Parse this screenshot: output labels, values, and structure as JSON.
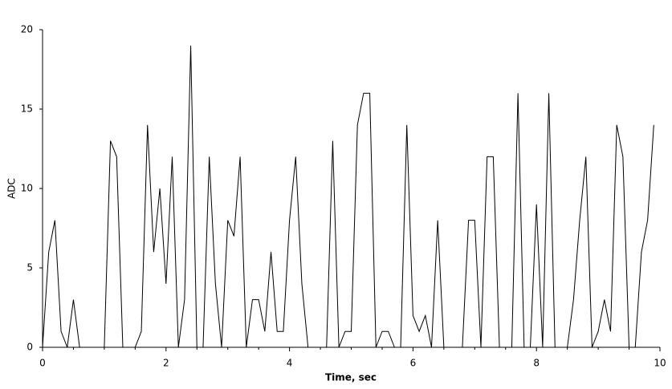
{
  "chart_data": {
    "type": "line",
    "xlabel": "Time, sec",
    "ylabel": "ADC",
    "x": [
      0,
      0.1,
      0.2,
      0.3,
      0.4,
      0.5,
      0.6,
      0.7,
      0.8,
      0.9,
      1,
      1.1,
      1.2,
      1.3,
      1.4,
      1.5,
      1.6,
      1.7,
      1.8,
      1.9,
      2,
      2.1,
      2.2,
      2.3,
      2.4,
      2.5,
      2.6,
      2.7,
      2.8,
      2.9,
      3,
      3.1,
      3.2,
      3.3,
      3.4,
      3.5,
      3.6,
      3.7,
      3.8,
      3.9,
      4,
      4.1,
      4.2,
      4.3,
      4.4,
      4.5,
      4.6,
      4.7,
      4.8,
      4.9,
      5,
      5.1,
      5.2,
      5.3,
      5.4,
      5.5,
      5.6,
      5.7,
      5.8,
      5.9,
      6,
      6.1,
      6.2,
      6.3,
      6.4,
      6.5,
      6.6,
      6.7,
      6.8,
      6.9,
      7,
      7.1,
      7.2,
      7.3,
      7.4,
      7.5,
      7.6,
      7.7,
      7.8,
      7.9,
      8,
      8.1,
      8.2,
      8.3,
      8.4,
      8.5,
      8.6,
      8.7,
      8.8,
      8.9,
      9,
      9.1,
      9.2,
      9.3,
      9.4,
      9.5,
      9.6,
      9.7,
      9.8,
      9.9
    ],
    "values": [
      0,
      6,
      8,
      1,
      0,
      3,
      0,
      0,
      0,
      0,
      0,
      13,
      12,
      0,
      0,
      0,
      1,
      14,
      6,
      10,
      4,
      12,
      0,
      3,
      19,
      0,
      0,
      12,
      4,
      0,
      8,
      7,
      12,
      0,
      3,
      3,
      1,
      6,
      1,
      1,
      8,
      12,
      4,
      0,
      0,
      0,
      0,
      13,
      0,
      1,
      1,
      14,
      16,
      16,
      0,
      1,
      1,
      0,
      0,
      14,
      2,
      1,
      2,
      0,
      8,
      0,
      0,
      0,
      0,
      8,
      8,
      0,
      12,
      12,
      0,
      0,
      0,
      16,
      0,
      0,
      9,
      0,
      16,
      0,
      0,
      0,
      3,
      8,
      12,
      0,
      1,
      3,
      1,
      14,
      12,
      0,
      0,
      6,
      8,
      14
    ],
    "color": "#000000",
    "xlim": [
      0,
      10
    ],
    "xticks": [
      0,
      2,
      4,
      6,
      8,
      10
    ],
    "xminor_ticks": [
      0.5,
      1,
      1.5,
      2.5,
      3,
      3.5,
      4.5,
      5,
      5.5,
      6.5,
      7,
      7.5,
      8.5,
      9,
      9.5
    ],
    "ylim": [
      0,
      20
    ],
    "yticks": [
      0,
      5,
      10,
      15,
      20
    ]
  }
}
